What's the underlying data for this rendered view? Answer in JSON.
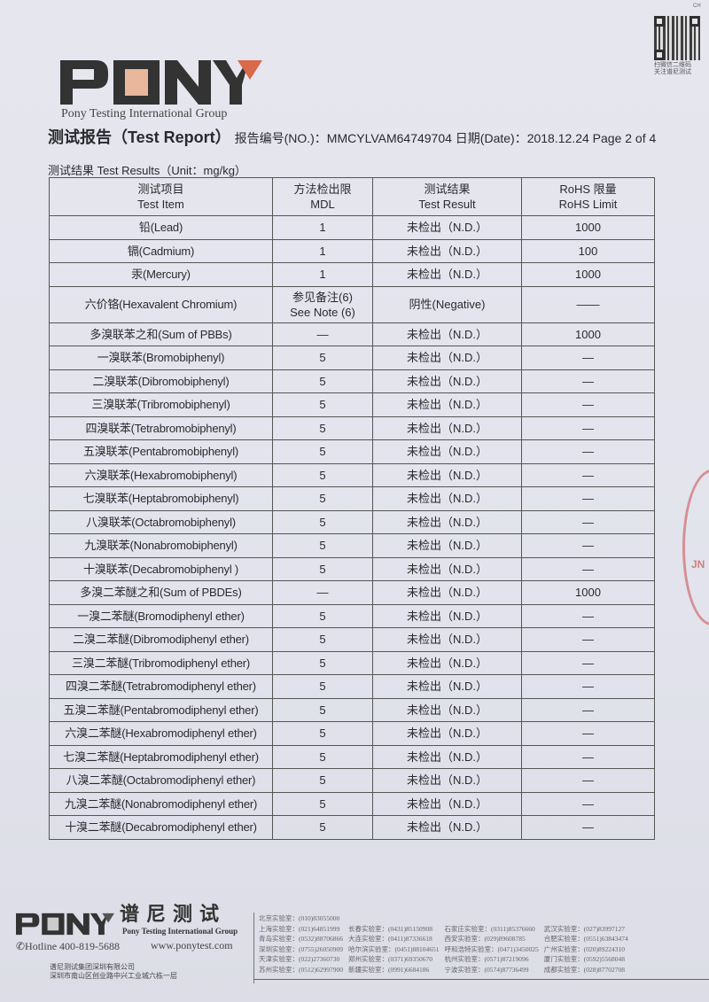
{
  "corner_mark": "CH",
  "qr_caption": [
    "扫微信二维码",
    "关注谱尼测试"
  ],
  "logo": {
    "text": "PONY",
    "tagline": "Pony Testing International Group",
    "accent": "#d9694a"
  },
  "header": {
    "title": "测试报告（Test Report）",
    "no_label": "报告编号(NO.)：",
    "no": "MMCYLVAM64749704",
    "date_label": "日期(Date)：",
    "date": "2018.12.24",
    "page": "Page 2 of 4"
  },
  "results_caption": "测试结果 Test Results（Unit：mg/kg）",
  "table": {
    "headers": [
      [
        "测试项目",
        "Test Item"
      ],
      [
        "方法检出限",
        "MDL"
      ],
      [
        "测试结果",
        "Test Result"
      ],
      [
        "RoHS 限量",
        "RoHS Limit"
      ]
    ],
    "rows": [
      [
        "铅(Lead)",
        "1",
        "未检出（N.D.）",
        "1000"
      ],
      [
        "镉(Cadmium)",
        "1",
        "未检出（N.D.）",
        "100"
      ],
      [
        "汞(Mercury)",
        "1",
        "未检出（N.D.）",
        "1000"
      ],
      [
        "六价铬(Hexavalent Chromium)",
        "参见备注(6)\nSee Note (6)",
        "阴性(Negative)",
        "——"
      ],
      [
        "多溴联苯之和(Sum of PBBs)",
        "—",
        "未检出（N.D.）",
        "1000"
      ],
      [
        "一溴联苯(Bromobiphenyl)",
        "5",
        "未检出（N.D.）",
        "—"
      ],
      [
        "二溴联苯(Dibromobiphenyl)",
        "5",
        "未检出（N.D.）",
        "—"
      ],
      [
        "三溴联苯(Tribromobiphenyl)",
        "5",
        "未检出（N.D.）",
        "—"
      ],
      [
        "四溴联苯(Tetrabromobiphenyl)",
        "5",
        "未检出（N.D.）",
        "—"
      ],
      [
        "五溴联苯(Pentabromobiphenyl)",
        "5",
        "未检出（N.D.）",
        "—"
      ],
      [
        "六溴联苯(Hexabromobiphenyl)",
        "5",
        "未检出（N.D.）",
        "—"
      ],
      [
        "七溴联苯(Heptabromobiphenyl)",
        "5",
        "未检出（N.D.）",
        "—"
      ],
      [
        "八溴联苯(Octabromobiphenyl)",
        "5",
        "未检出（N.D.）",
        "—"
      ],
      [
        "九溴联苯(Nonabromobiphenyl)",
        "5",
        "未检出（N.D.）",
        "—"
      ],
      [
        "十溴联苯(Decabromobiphenyl )",
        "5",
        "未检出（N.D.）",
        "—"
      ],
      [
        "多溴二苯醚之和(Sum of PBDEs)",
        "—",
        "未检出（N.D.）",
        "1000"
      ],
      [
        "一溴二苯醚(Bromodiphenyl ether)",
        "5",
        "未检出（N.D.）",
        "—"
      ],
      [
        "二溴二苯醚(Dibromodiphenyl ether)",
        "5",
        "未检出（N.D.）",
        "—"
      ],
      [
        "三溴二苯醚(Tribromodiphenyl ether)",
        "5",
        "未检出（N.D.）",
        "—"
      ],
      [
        "四溴二苯醚(Tetrabromodiphenyl ether)",
        "5",
        "未检出（N.D.）",
        "—"
      ],
      [
        "五溴二苯醚(Pentabromodiphenyl ether)",
        "5",
        "未检出（N.D.）",
        "—"
      ],
      [
        "六溴二苯醚(Hexabromodiphenyl ether)",
        "5",
        "未检出（N.D.）",
        "—"
      ],
      [
        "七溴二苯醚(Heptabromodiphenyl ether)",
        "5",
        "未检出（N.D.）",
        "—"
      ],
      [
        "八溴二苯醚(Octabromodiphenyl ether)",
        "5",
        "未检出（N.D.）",
        "—"
      ],
      [
        "九溴二苯醚(Nonabromodiphenyl ether)",
        "5",
        "未检出（N.D.）",
        "—"
      ],
      [
        "十溴二苯醚(Decabromodiphenyl ether)",
        "5",
        "未检出（N.D.）",
        "—"
      ]
    ]
  },
  "stamp_text": "JN",
  "footer": {
    "brand_cn": "谱尼测试",
    "brand_en": "Pony Testing International Group",
    "hotline": "✆Hotline 400-819-5688",
    "website": "www.ponytest.com",
    "address": [
      "谱尼测试集团深圳有限公司",
      "深圳市南山区创业路中兴工业城六栋一层"
    ],
    "labs": [
      "北京实验室：(010)83055000",
      "",
      "",
      "",
      "上海实验室：(021)64851999",
      "长春实验室：(0431)85150908",
      "石家庄实验室：(0311)85376660",
      "武汉实验室：(027)83997127",
      "青岛实验室：(0532)88706866",
      "大连实验室：(0411)87336618",
      "西安实验室：(029)89608785",
      "合肥实验室：(0551)63843474",
      "深圳实验室：(0755)26050909",
      "哈尔滨实验室：(0451)88104651",
      "呼和浩特实验室：(0471)3450025",
      "广州实验室：(020)89224310",
      "天津实验室：(022)27360730",
      "郑州实验室：(0371)69350670",
      "杭州实验室：(0571)87219096",
      "厦门实验室：(0592)5568048",
      "苏州实验室：(0512)62997900",
      "新疆实验室：(0991)6684186",
      "宁波实验室：(0574)87736499",
      "成都实验室：(028)87702708"
    ]
  }
}
